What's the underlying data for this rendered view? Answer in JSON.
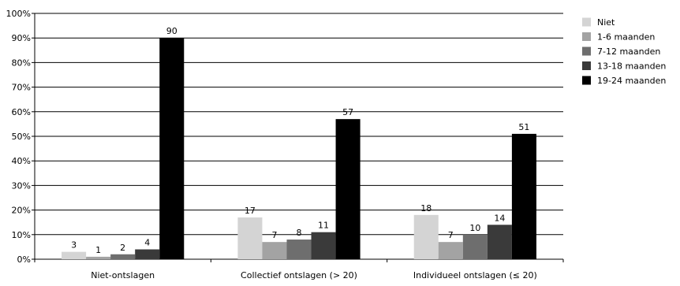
{
  "chart_data": {
    "type": "bar",
    "categories": [
      "Niet-ontslagen",
      "Collectief ontslagen (> 20)",
      "Individueel ontslagen (≤ 20)"
    ],
    "series": [
      {
        "name": "Niet",
        "values": [
          3,
          17,
          18
        ],
        "color": "#d4d4d4"
      },
      {
        "name": "1-6 maanden",
        "values": [
          1,
          7,
          7
        ],
        "color": "#a3a3a3"
      },
      {
        "name": "7-12 maanden",
        "values": [
          2,
          8,
          10
        ],
        "color": "#6e6e6e"
      },
      {
        "name": "13-18 maanden",
        "values": [
          4,
          11,
          14
        ],
        "color": "#3a3a3a"
      },
      {
        "name": "19-24 maanden",
        "values": [
          90,
          57,
          51
        ],
        "color": "#000000"
      }
    ],
    "yticks": [
      "0%",
      "10%",
      "20%",
      "30%",
      "40%",
      "50%",
      "60%",
      "70%",
      "80%",
      "90%",
      "100%"
    ],
    "ylim": [
      0,
      100
    ],
    "grid": true,
    "legend": "right",
    "title": "",
    "xlabel": "",
    "ylabel": ""
  }
}
